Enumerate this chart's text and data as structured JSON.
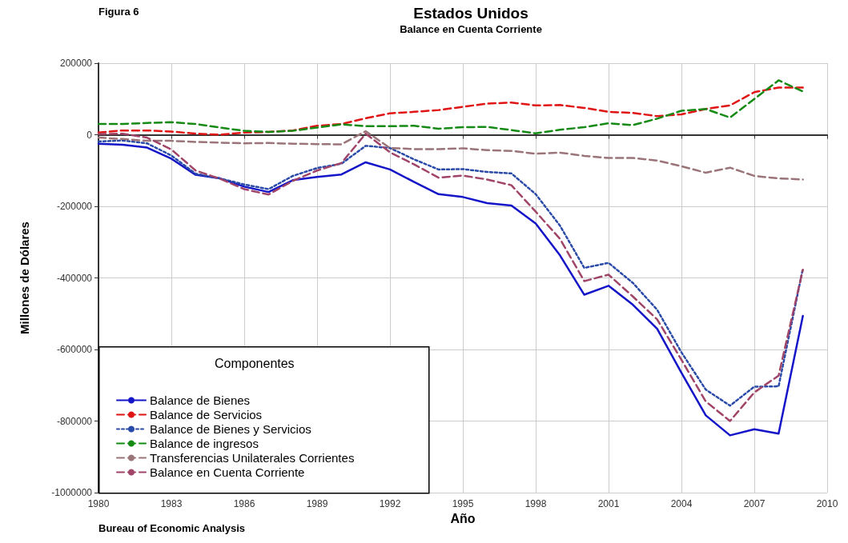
{
  "chart_data": {
    "type": "line",
    "title": "Estados Unidos",
    "subtitle": "Balance en Cuenta Corriente",
    "xlabel": "Año",
    "ylabel": "Millones de Dólares",
    "legend_title": "Componentes",
    "annotations": [
      "Figura 6",
      "Bureau of Economic Analysis"
    ],
    "x": [
      1980,
      1981,
      1982,
      1983,
      1984,
      1985,
      1986,
      1987,
      1988,
      1989,
      1990,
      1991,
      1992,
      1993,
      1994,
      1995,
      1996,
      1997,
      1998,
      1999,
      2000,
      2001,
      2002,
      2003,
      2004,
      2005,
      2006,
      2007,
      2008,
      2009
    ],
    "series": [
      {
        "name": "Balance de Bienes",
        "color": "#1414c8",
        "line_style": "solid",
        "values": [
          -25000,
          -28000,
          -36000,
          -67000,
          -112000,
          -122000,
          -145000,
          -160000,
          -127000,
          -118000,
          -111000,
          -77000,
          -97000,
          -132000,
          -166000,
          -174000,
          -191000,
          -198000,
          -248000,
          -337000,
          -447000,
          -422000,
          -475000,
          -542000,
          -665000,
          -784000,
          -840000,
          -823000,
          -835000,
          -506000
        ]
      },
      {
        "name": "Balance de Servicios",
        "color": "#e01414",
        "line_style": "dashed",
        "values": [
          6000,
          12000,
          12000,
          9000,
          3000,
          0,
          6000,
          8000,
          12000,
          25000,
          30000,
          46000,
          60000,
          64000,
          69000,
          78000,
          87000,
          90000,
          82000,
          83000,
          75000,
          64000,
          61000,
          52000,
          57000,
          72000,
          82000,
          119000,
          132000,
          132000
        ]
      },
      {
        "name": "Balance de Bienes y Servicios",
        "color": "#2a4aa8",
        "line_style": "dotted",
        "values": [
          -19000,
          -16000,
          -24000,
          -58000,
          -109000,
          -122000,
          -139000,
          -152000,
          -115000,
          -93000,
          -81000,
          -31000,
          -37000,
          -69000,
          -97000,
          -96000,
          -104000,
          -108000,
          -166000,
          -254000,
          -372000,
          -358000,
          -414000,
          -489000,
          -608000,
          -712000,
          -757000,
          -704000,
          -703000,
          -374000
        ]
      },
      {
        "name": "Balance de ingresos",
        "color": "#158a15",
        "line_style": "dashed",
        "values": [
          30000,
          30000,
          33000,
          35000,
          30000,
          20000,
          11000,
          8000,
          11000,
          20000,
          29000,
          24000,
          24000,
          25000,
          17000,
          21000,
          22000,
          13000,
          4000,
          14000,
          21000,
          32000,
          27000,
          45000,
          67000,
          72000,
          48000,
          100000,
          152000,
          121000
        ]
      },
      {
        "name": "Transferencias Unilaterales Corrientes",
        "color": "#9a7478",
        "line_style": "dashed",
        "values": [
          -8000,
          -12000,
          -17000,
          -17000,
          -20000,
          -22000,
          -24000,
          -23000,
          -25000,
          -26000,
          -27000,
          10000,
          -37000,
          -40000,
          -40000,
          -38000,
          -43000,
          -45000,
          -53000,
          -50000,
          -59000,
          -65000,
          -65000,
          -72000,
          -88000,
          -106000,
          -92000,
          -115000,
          -122000,
          -125000
        ]
      },
      {
        "name": "Balance en Cuenta Corriente",
        "color": "#a04468",
        "line_style": "dashed",
        "values": [
          2000,
          3000,
          -8000,
          -41000,
          -100000,
          -123000,
          -152000,
          -167000,
          -129000,
          -100000,
          -79000,
          3000,
          -49000,
          -83000,
          -120000,
          -114000,
          -125000,
          -141000,
          -215000,
          -291000,
          -409000,
          -391000,
          -452000,
          -516000,
          -629000,
          -745000,
          -800000,
          -720000,
          -673000,
          -377000
        ]
      }
    ],
    "xlim": [
      1980,
      2010
    ],
    "xticks": [
      1980,
      1983,
      1986,
      1989,
      1992,
      1995,
      1998,
      2001,
      2004,
      2007,
      2010
    ],
    "ylim": [
      -1000000,
      200000
    ],
    "yticks": [
      -1000000,
      -800000,
      -600000,
      -400000,
      -200000,
      0,
      200000
    ],
    "grid": true,
    "legend": "bottom left",
    "marker": "none"
  }
}
